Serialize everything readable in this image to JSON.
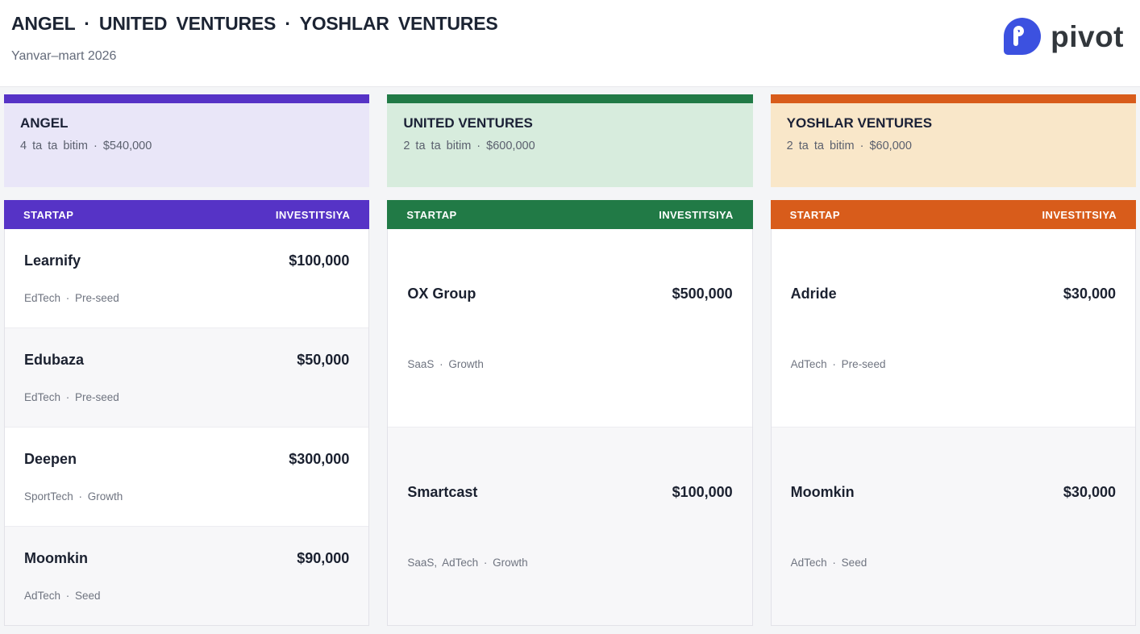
{
  "header": {
    "title": "ANGEL · UNITED VENTURES · YOSHLAR VENTURES",
    "subtitle": "Yanvar–mart 2026",
    "logo_text": "pivot",
    "logo_color": "#3c51e0"
  },
  "table_headers": {
    "startup": "STARTAP",
    "investment": "INVESTITSIYA"
  },
  "funds": [
    {
      "name": "ANGEL",
      "meta": "4 ta ta bitim · $540,000",
      "accent": "#5633c6",
      "tint": "#e9e6f8",
      "deals": [
        {
          "name": "Learnify",
          "amount": "$100,000",
          "tags": "EdTech · Pre-seed"
        },
        {
          "name": "Edubaza",
          "amount": "$50,000",
          "tags": "EdTech · Pre-seed"
        },
        {
          "name": "Deepen",
          "amount": "$300,000",
          "tags": "SportTech · Growth"
        },
        {
          "name": "Moomkin",
          "amount": "$90,000",
          "tags": "AdTech · Seed"
        }
      ]
    },
    {
      "name": "UNITED VENTURES",
      "meta": "2 ta ta bitim · $600,000",
      "accent": "#217a46",
      "tint": "#d7ecdd",
      "deals": [
        {
          "name": "OX Group",
          "amount": "$500,000",
          "tags": "SaaS · Growth"
        },
        {
          "name": "Smartcast",
          "amount": "$100,000",
          "tags": "SaaS, AdTech · Growth"
        }
      ]
    },
    {
      "name": "YOSHLAR VENTURES",
      "meta": "2 ta ta bitim · $60,000",
      "accent": "#d85c1b",
      "tint": "#f9e7c9",
      "deals": [
        {
          "name": "Adride",
          "amount": "$30,000",
          "tags": "AdTech · Pre-seed"
        },
        {
          "name": "Moomkin",
          "amount": "$30,000",
          "tags": "AdTech · Seed"
        }
      ]
    }
  ]
}
